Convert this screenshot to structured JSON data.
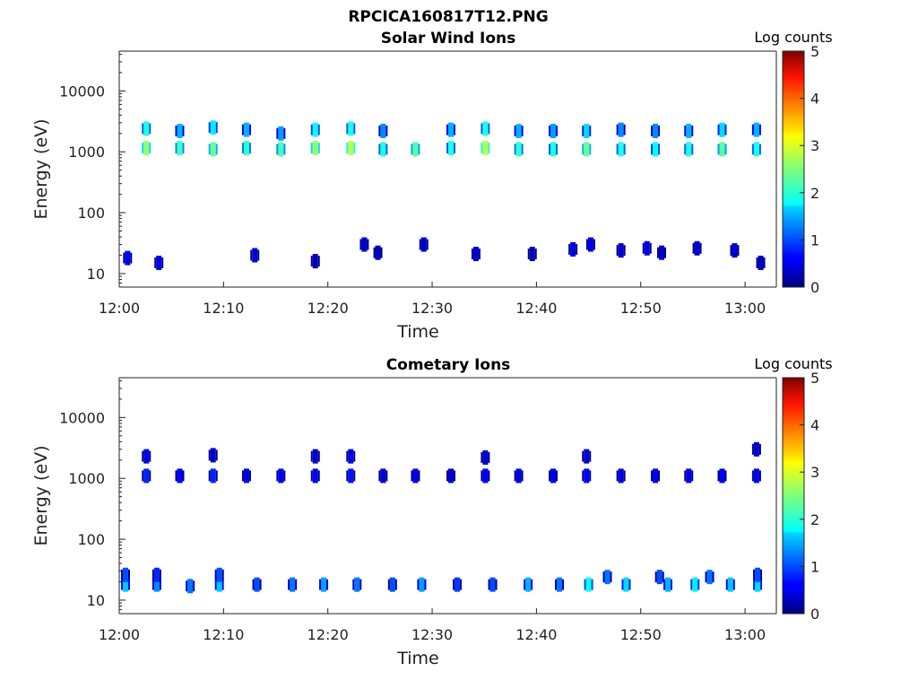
{
  "figure": {
    "main_title": "RPCICA160817T12.PNG"
  },
  "chart_data": [
    {
      "type": "heatmap",
      "title": "Solar Wind Ions",
      "xlabel": "Time",
      "ylabel": "Energy (eV)",
      "colorbar_label": "Log counts",
      "colorbar_ticks": [
        "0",
        "1",
        "2",
        "3",
        "4",
        "5"
      ],
      "colorbar_range": [
        0,
        5
      ],
      "x_ticks": [
        "12:00",
        "12:10",
        "12:20",
        "12:30",
        "12:40",
        "12:50",
        "13:00"
      ],
      "xlim_minutes": [
        0,
        63
      ],
      "y_ticks": [
        "10",
        "100",
        "1000",
        "10000"
      ],
      "ylim": [
        6,
        45000
      ],
      "y_scale": "log",
      "colormap": "jet",
      "cells": [
        [
          2.6,
          1150,
          2.6
        ],
        [
          2.6,
          2400,
          2.0
        ],
        [
          5.8,
          1150,
          2.2
        ],
        [
          5.8,
          2200,
          1.5
        ],
        [
          9.0,
          1100,
          2.4
        ],
        [
          9.0,
          2500,
          1.8
        ],
        [
          12.2,
          1150,
          2.1
        ],
        [
          12.2,
          2300,
          1.5
        ],
        [
          15.5,
          1100,
          2.2
        ],
        [
          15.5,
          2000,
          1.4
        ],
        [
          18.8,
          1150,
          2.6
        ],
        [
          18.8,
          2300,
          1.9
        ],
        [
          22.2,
          1150,
          2.8
        ],
        [
          22.2,
          2400,
          2.0
        ],
        [
          25.3,
          1100,
          2.0
        ],
        [
          25.3,
          2200,
          1.3
        ],
        [
          28.4,
          1100,
          2.3
        ],
        [
          31.8,
          1150,
          2.0
        ],
        [
          31.8,
          2300,
          1.5
        ],
        [
          35.1,
          1150,
          2.8
        ],
        [
          35.1,
          2400,
          2.0
        ],
        [
          38.3,
          1100,
          2.1
        ],
        [
          38.3,
          2200,
          1.5
        ],
        [
          41.6,
          1100,
          2.0
        ],
        [
          41.6,
          2200,
          1.4
        ],
        [
          44.8,
          1100,
          2.4
        ],
        [
          44.8,
          2200,
          1.7
        ],
        [
          48.1,
          1100,
          2.0
        ],
        [
          48.1,
          2300,
          1.3
        ],
        [
          51.4,
          1100,
          1.9
        ],
        [
          51.4,
          2200,
          1.3
        ],
        [
          54.6,
          1100,
          2.0
        ],
        [
          54.6,
          2200,
          1.5
        ],
        [
          57.8,
          1100,
          2.3
        ],
        [
          57.8,
          2300,
          1.7
        ],
        [
          61.1,
          1100,
          2.0
        ],
        [
          61.1,
          2300,
          1.5
        ],
        [
          0.8,
          18,
          0.6
        ],
        [
          3.8,
          15,
          0.5
        ],
        [
          13.0,
          20,
          0.4
        ],
        [
          18.8,
          16,
          0.3
        ],
        [
          23.5,
          30,
          0.4
        ],
        [
          24.8,
          22,
          0.3
        ],
        [
          29.2,
          30,
          0.4
        ],
        [
          34.2,
          21,
          0.4
        ],
        [
          39.6,
          21,
          0.3
        ],
        [
          43.5,
          25,
          0.5
        ],
        [
          45.2,
          30,
          0.5
        ],
        [
          48.1,
          24,
          0.4
        ],
        [
          50.6,
          26,
          0.5
        ],
        [
          52.0,
          22,
          0.4
        ],
        [
          55.4,
          26,
          0.4
        ],
        [
          59.0,
          24,
          0.4
        ],
        [
          61.5,
          15,
          0.3
        ]
      ]
    },
    {
      "type": "heatmap",
      "title": "Cometary Ions",
      "xlabel": "Time",
      "ylabel": "Energy (eV)",
      "colorbar_label": "Log counts",
      "colorbar_ticks": [
        "0",
        "1",
        "2",
        "3",
        "4",
        "5"
      ],
      "colorbar_range": [
        0,
        5
      ],
      "x_ticks": [
        "12:00",
        "12:10",
        "12:20",
        "12:30",
        "12:40",
        "12:50",
        "13:00"
      ],
      "xlim_minutes": [
        0,
        63
      ],
      "y_ticks": [
        "10",
        "100",
        "1000",
        "10000"
      ],
      "ylim": [
        6,
        45000
      ],
      "y_scale": "log",
      "colormap": "jet",
      "cells": [
        [
          2.6,
          1100,
          0.8
        ],
        [
          2.6,
          2300,
          0.5
        ],
        [
          5.8,
          1100,
          0.6
        ],
        [
          9.0,
          1100,
          0.8
        ],
        [
          9.0,
          2400,
          0.4
        ],
        [
          12.2,
          1100,
          0.5
        ],
        [
          15.5,
          1100,
          0.6
        ],
        [
          18.8,
          1100,
          0.6
        ],
        [
          18.8,
          2300,
          0.4
        ],
        [
          22.2,
          1100,
          0.7
        ],
        [
          22.2,
          2300,
          0.5
        ],
        [
          25.3,
          1100,
          0.4
        ],
        [
          28.4,
          1100,
          0.5
        ],
        [
          31.8,
          1100,
          0.4
        ],
        [
          35.1,
          1100,
          0.6
        ],
        [
          35.1,
          2200,
          0.4
        ],
        [
          38.3,
          1100,
          0.5
        ],
        [
          41.6,
          1100,
          0.5
        ],
        [
          44.8,
          1100,
          0.6
        ],
        [
          44.8,
          2300,
          0.4
        ],
        [
          48.1,
          1100,
          0.5
        ],
        [
          51.4,
          1100,
          0.5
        ],
        [
          54.6,
          1100,
          0.5
        ],
        [
          57.8,
          1100,
          0.6
        ],
        [
          61.1,
          1100,
          0.6
        ],
        [
          61.1,
          3000,
          0.4
        ],
        [
          0.6,
          18,
          1.6
        ],
        [
          0.6,
          26,
          1.0
        ],
        [
          3.6,
          18,
          1.3
        ],
        [
          3.6,
          26,
          0.8
        ],
        [
          6.8,
          17,
          1.2
        ],
        [
          9.6,
          18,
          1.6
        ],
        [
          9.6,
          26,
          1.0
        ],
        [
          13.2,
          18,
          1.0
        ],
        [
          16.6,
          18,
          1.2
        ],
        [
          19.6,
          18,
          1.4
        ],
        [
          22.8,
          18,
          1.2
        ],
        [
          26.2,
          18,
          1.0
        ],
        [
          29.0,
          18,
          1.4
        ],
        [
          32.4,
          18,
          0.9
        ],
        [
          35.8,
          18,
          1.0
        ],
        [
          39.2,
          18,
          1.5
        ],
        [
          42.2,
          18,
          1.2
        ],
        [
          45.0,
          18,
          1.9
        ],
        [
          46.8,
          24,
          1.2
        ],
        [
          48.6,
          18,
          1.7
        ],
        [
          51.8,
          24,
          1.0
        ],
        [
          52.6,
          18,
          1.5
        ],
        [
          55.2,
          18,
          1.8
        ],
        [
          56.6,
          24,
          1.2
        ],
        [
          58.6,
          18,
          1.6
        ],
        [
          61.2,
          18,
          1.7
        ],
        [
          61.2,
          26,
          1.0
        ]
      ]
    }
  ]
}
